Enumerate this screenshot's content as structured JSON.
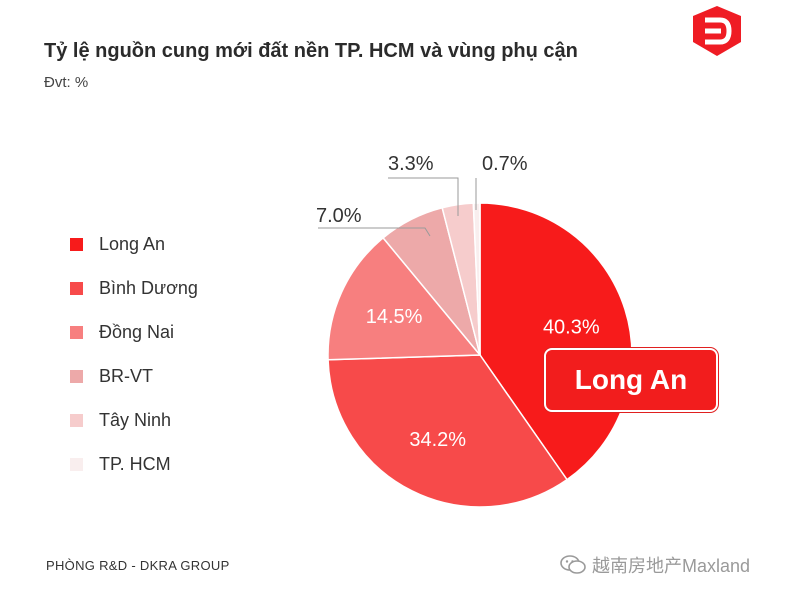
{
  "chart_data": {
    "type": "pie",
    "title": "Tỷ lệ nguồn cung mới đất nền TP. HCM và vùng phụ cận",
    "subtitle": "Đvt: %",
    "categories": [
      "Long An",
      "Bình Dương",
      "Đồng Nai",
      "BR-VT",
      "Tây Ninh",
      "TP. HCM"
    ],
    "values": [
      40.3,
      34.2,
      14.5,
      7.0,
      3.3,
      0.7
    ],
    "value_labels": [
      "40.3%",
      "34.2%",
      "14.5%",
      "7.0%",
      "3.3%",
      "0.7%"
    ],
    "colors": [
      "#f71b1b",
      "#f74a4a",
      "#f77f7f",
      "#eda9a9",
      "#f6cccc",
      "#f9eeee"
    ],
    "legend_position": "left",
    "highlight": "Long An"
  },
  "source": "PHÒNG R&D - DKRA GROUP",
  "watermark": "越南房地产Maxland",
  "logo_icon": "dkra-logo-icon"
}
